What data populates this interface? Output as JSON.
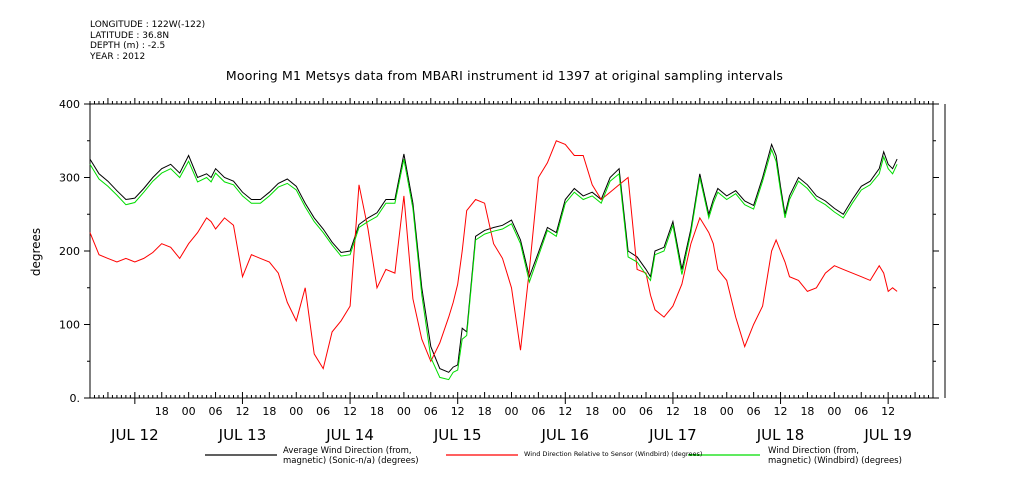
{
  "metadata": {
    "longitude": "LONGITUDE : 122W(-122)",
    "latitude": "LATITUDE : 36.8N",
    "depth": "DEPTH (m) : -2.5",
    "year": "YEAR : 2012"
  },
  "chart_data": {
    "type": "line",
    "title": "Mooring M1 Metsys data from MBARI instrument id 1397 at original sampling intervals",
    "ylabel": "degrees",
    "xlabel": "",
    "ylim": [
      0,
      400
    ],
    "y_ticks": [
      0,
      100,
      200,
      300,
      400
    ],
    "y_tick_labels": [
      "0.",
      "100",
      "200",
      "300",
      "400"
    ],
    "xlim_hours": [
      -10,
      178
    ],
    "x_hour_ticks": [
      {
        "h": 6,
        "label": "18"
      },
      {
        "h": 12,
        "label": "00"
      },
      {
        "h": 18,
        "label": "06"
      },
      {
        "h": 24,
        "label": "12"
      },
      {
        "h": 30,
        "label": "18"
      },
      {
        "h": 36,
        "label": "00"
      },
      {
        "h": 42,
        "label": "06"
      },
      {
        "h": 48,
        "label": "12"
      },
      {
        "h": 54,
        "label": "18"
      },
      {
        "h": 60,
        "label": "00"
      },
      {
        "h": 66,
        "label": "06"
      },
      {
        "h": 72,
        "label": "12"
      },
      {
        "h": 78,
        "label": "18"
      },
      {
        "h": 84,
        "label": "00"
      },
      {
        "h": 90,
        "label": "06"
      },
      {
        "h": 96,
        "label": "12"
      },
      {
        "h": 102,
        "label": "18"
      },
      {
        "h": 108,
        "label": "00"
      },
      {
        "h": 114,
        "label": "06"
      },
      {
        "h": 120,
        "label": "12"
      },
      {
        "h": 126,
        "label": "18"
      },
      {
        "h": 132,
        "label": "00"
      },
      {
        "h": 138,
        "label": "06"
      },
      {
        "h": 144,
        "label": "12"
      },
      {
        "h": 150,
        "label": "18"
      },
      {
        "h": 156,
        "label": "00"
      },
      {
        "h": 162,
        "label": "06"
      },
      {
        "h": 168,
        "label": "12"
      }
    ],
    "x_day_labels": [
      {
        "h": 0,
        "label": "JUL 12"
      },
      {
        "h": 24,
        "label": "JUL 13"
      },
      {
        "h": 48,
        "label": "JUL 14"
      },
      {
        "h": 72,
        "label": "JUL 15"
      },
      {
        "h": 96,
        "label": "JUL 16"
      },
      {
        "h": 120,
        "label": "JUL 17"
      },
      {
        "h": 144,
        "label": "JUL 18"
      },
      {
        "h": 168,
        "label": "JUL 19"
      }
    ],
    "series": [
      {
        "name": "Average Wind Direction (from, magnetic) (Sonic-n/a) (degrees)",
        "color": "#000000",
        "x": [
          -10,
          -8,
          -6,
          -4,
          -2,
          0,
          2,
          4,
          6,
          8,
          10,
          12,
          14,
          16,
          17,
          18,
          20,
          22,
          24,
          26,
          28,
          30,
          32,
          34,
          36,
          38,
          40,
          42,
          44,
          46,
          48,
          50,
          52,
          54,
          56,
          58,
          60,
          62,
          64,
          66,
          68,
          70,
          71,
          72,
          73,
          74,
          76,
          78,
          80,
          82,
          84,
          86,
          88,
          90,
          92,
          94,
          96,
          98,
          100,
          102,
          104,
          106,
          108,
          110,
          112,
          114,
          115,
          116,
          118,
          120,
          122,
          124,
          126,
          128,
          129,
          130,
          132,
          134,
          136,
          138,
          140,
          142,
          143,
          144,
          145,
          146,
          148,
          150,
          152,
          154,
          156,
          158,
          160,
          162,
          164,
          166,
          167,
          168,
          169,
          170
        ],
        "y": [
          325,
          305,
          295,
          282,
          270,
          272,
          285,
          300,
          312,
          318,
          306,
          330,
          300,
          305,
          300,
          312,
          300,
          295,
          280,
          270,
          270,
          280,
          292,
          298,
          288,
          265,
          245,
          230,
          212,
          198,
          200,
          236,
          245,
          252,
          270,
          270,
          332,
          265,
          150,
          70,
          40,
          35,
          42,
          45,
          95,
          90,
          220,
          228,
          232,
          235,
          242,
          215,
          165,
          198,
          232,
          225,
          270,
          285,
          275,
          280,
          270,
          300,
          312,
          200,
          192,
          175,
          165,
          200,
          205,
          240,
          175,
          230,
          305,
          250,
          270,
          285,
          275,
          282,
          268,
          262,
          300,
          345,
          330,
          288,
          250,
          275,
          300,
          290,
          275,
          268,
          258,
          250,
          270,
          288,
          295,
          312,
          335,
          318,
          312,
          325
        ]
      },
      {
        "name": "Wind Direction Relative to Sensor (Windbird) (degrees)",
        "color": "#ff0000",
        "x": [
          -10,
          -8,
          -6,
          -4,
          -2,
          0,
          2,
          4,
          6,
          8,
          10,
          12,
          14,
          16,
          17,
          18,
          20,
          22,
          24,
          26,
          28,
          30,
          32,
          34,
          36,
          38,
          40,
          42,
          44,
          46,
          48,
          50,
          52,
          54,
          56,
          58,
          60,
          62,
          64,
          66,
          68,
          70,
          71,
          72,
          73,
          74,
          76,
          78,
          80,
          82,
          84,
          86,
          88,
          90,
          92,
          94,
          96,
          98,
          100,
          102,
          104,
          106,
          108,
          110,
          112,
          114,
          115,
          116,
          118,
          120,
          122,
          124,
          126,
          128,
          129,
          130,
          132,
          134,
          136,
          138,
          140,
          142,
          143,
          144,
          145,
          146,
          148,
          150,
          152,
          154,
          156,
          158,
          160,
          162,
          164,
          166,
          167,
          168,
          169,
          170
        ],
        "y": [
          225,
          195,
          190,
          185,
          190,
          185,
          190,
          198,
          210,
          205,
          190,
          210,
          225,
          245,
          240,
          230,
          245,
          235,
          165,
          195,
          190,
          185,
          170,
          130,
          105,
          150,
          60,
          40,
          90,
          105,
          125,
          290,
          230,
          150,
          175,
          170,
          275,
          135,
          80,
          50,
          75,
          110,
          130,
          155,
          200,
          255,
          270,
          265,
          210,
          190,
          150,
          65,
          175,
          300,
          320,
          350,
          345,
          330,
          330,
          290,
          270,
          280,
          290,
          300,
          175,
          170,
          140,
          120,
          110,
          125,
          155,
          210,
          245,
          225,
          210,
          175,
          160,
          110,
          70,
          100,
          125,
          200,
          215,
          200,
          185,
          165,
          160,
          145,
          150,
          170,
          180,
          175,
          170,
          165,
          160,
          180,
          170,
          145,
          150,
          145
        ]
      },
      {
        "name": "Wind Direction (from, magnetic) (Windbird) (degrees)",
        "color": "#00dd00",
        "x": [
          -10,
          -8,
          -6,
          -4,
          -2,
          0,
          2,
          4,
          6,
          8,
          10,
          12,
          14,
          16,
          17,
          18,
          20,
          22,
          24,
          26,
          28,
          30,
          32,
          34,
          36,
          38,
          40,
          42,
          44,
          46,
          48,
          50,
          52,
          54,
          56,
          58,
          60,
          62,
          64,
          66,
          68,
          70,
          71,
          72,
          73,
          74,
          76,
          78,
          80,
          82,
          84,
          86,
          88,
          90,
          92,
          94,
          96,
          98,
          100,
          102,
          104,
          106,
          108,
          110,
          112,
          114,
          115,
          116,
          118,
          120,
          122,
          124,
          126,
          128,
          129,
          130,
          132,
          134,
          136,
          138,
          140,
          142,
          143,
          144,
          145,
          146,
          148,
          150,
          152,
          154,
          156,
          158,
          160,
          162,
          164,
          166,
          167,
          168,
          169,
          170
        ],
        "y": [
          318,
          298,
          288,
          276,
          263,
          266,
          280,
          295,
          306,
          312,
          300,
          322,
          294,
          300,
          294,
          306,
          294,
          290,
          275,
          265,
          265,
          275,
          287,
          292,
          283,
          260,
          240,
          225,
          208,
          193,
          195,
          232,
          240,
          247,
          265,
          265,
          325,
          258,
          140,
          55,
          28,
          25,
          35,
          38,
          80,
          85,
          215,
          223,
          227,
          230,
          237,
          210,
          158,
          193,
          228,
          220,
          265,
          280,
          270,
          275,
          265,
          295,
          305,
          192,
          185,
          168,
          160,
          195,
          200,
          235,
          168,
          225,
          300,
          245,
          265,
          280,
          270,
          278,
          263,
          257,
          295,
          338,
          322,
          282,
          245,
          270,
          295,
          285,
          270,
          263,
          253,
          245,
          265,
          283,
          290,
          305,
          328,
          312,
          305,
          318
        ]
      }
    ],
    "legend": {
      "placement": "bottom",
      "entries": [
        {
          "line1": "Average Wind Direction (from,",
          "line2": "magnetic) (Sonic-n/a) (degrees)",
          "color": "#000000"
        },
        {
          "line1": "Wind Direction Relative to Sensor (Windbird) (degrees)",
          "line2": "",
          "color": "#ff0000"
        },
        {
          "line1": "Wind Direction (from,",
          "line2": "magnetic) (Windbird) (degrees)",
          "color": "#00dd00"
        }
      ]
    }
  }
}
